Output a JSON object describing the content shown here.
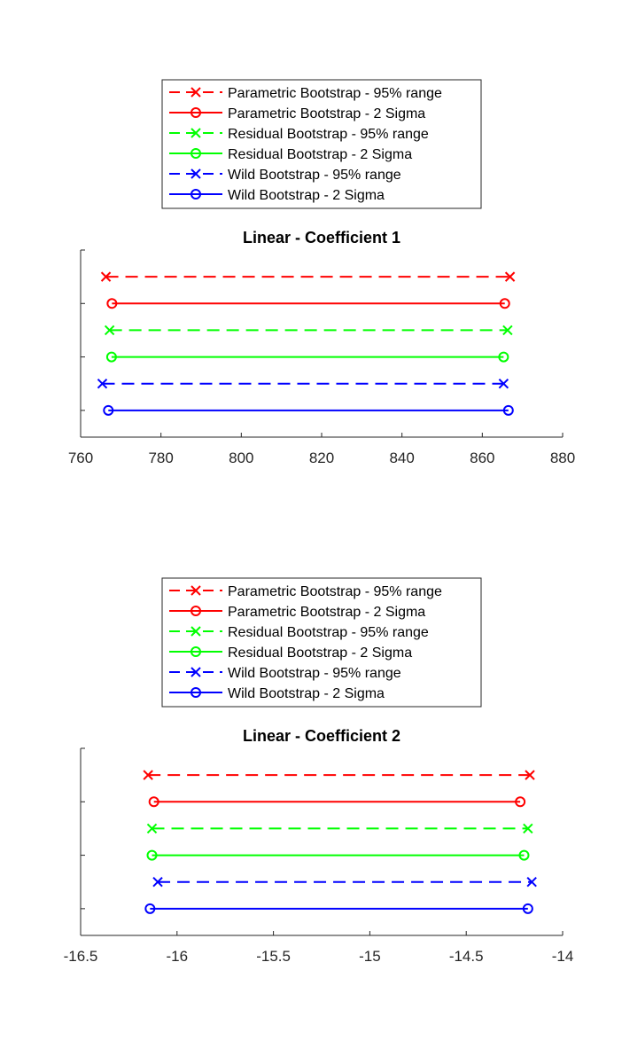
{
  "chart_data": [
    {
      "type": "interval",
      "title": "Linear - Coefficient 1",
      "xlim": [
        760,
        880
      ],
      "xticks": [
        760,
        780,
        800,
        820,
        840,
        860,
        880
      ],
      "grid": false,
      "legend": "top",
      "series": [
        {
          "name": "Parametric Bootstrap - 95% range",
          "color": "#ff0000",
          "style": "dashed",
          "marker": "x",
          "x": [
            766.3,
            866.9
          ]
        },
        {
          "name": "Parametric Bootstrap - 2 Sigma",
          "color": "#ff0000",
          "style": "solid",
          "marker": "o",
          "x": [
            767.8,
            865.6
          ]
        },
        {
          "name": "Residual Bootstrap - 95% range",
          "color": "#00ff00",
          "style": "dashed",
          "marker": "x",
          "x": [
            767.2,
            866.3
          ]
        },
        {
          "name": "Residual Bootstrap - 2 Sigma",
          "color": "#00ff00",
          "style": "solid",
          "marker": "o",
          "x": [
            767.7,
            865.3
          ]
        },
        {
          "name": "Wild Bootstrap - 95% range",
          "color": "#0000ff",
          "style": "dashed",
          "marker": "x",
          "x": [
            765.4,
            865.3
          ]
        },
        {
          "name": "Wild Bootstrap - 2 Sigma",
          "color": "#0000ff",
          "style": "solid",
          "marker": "o",
          "x": [
            766.9,
            866.5
          ]
        }
      ]
    },
    {
      "type": "interval",
      "title": "Linear - Coefficient 2",
      "xlim": [
        -16.5,
        -14
      ],
      "xticks": [
        -16.5,
        -16,
        -15.5,
        -15,
        -14.5,
        -14
      ],
      "grid": false,
      "legend": "top",
      "series": [
        {
          "name": "Parametric Bootstrap - 95% range",
          "color": "#ff0000",
          "style": "dashed",
          "marker": "x",
          "x": [
            -16.15,
            -14.17
          ]
        },
        {
          "name": "Parametric Bootstrap - 2 Sigma",
          "color": "#ff0000",
          "style": "solid",
          "marker": "o",
          "x": [
            -16.12,
            -14.22
          ]
        },
        {
          "name": "Residual Bootstrap - 95% range",
          "color": "#00ff00",
          "style": "dashed",
          "marker": "x",
          "x": [
            -16.13,
            -14.18
          ]
        },
        {
          "name": "Residual Bootstrap - 2 Sigma",
          "color": "#00ff00",
          "style": "solid",
          "marker": "o",
          "x": [
            -16.13,
            -14.2
          ]
        },
        {
          "name": "Wild Bootstrap - 95% range",
          "color": "#0000ff",
          "style": "dashed",
          "marker": "x",
          "x": [
            -16.1,
            -14.16
          ]
        },
        {
          "name": "Wild Bootstrap - 2 Sigma",
          "color": "#0000ff",
          "style": "solid",
          "marker": "o",
          "x": [
            -16.14,
            -14.18
          ]
        }
      ]
    }
  ]
}
